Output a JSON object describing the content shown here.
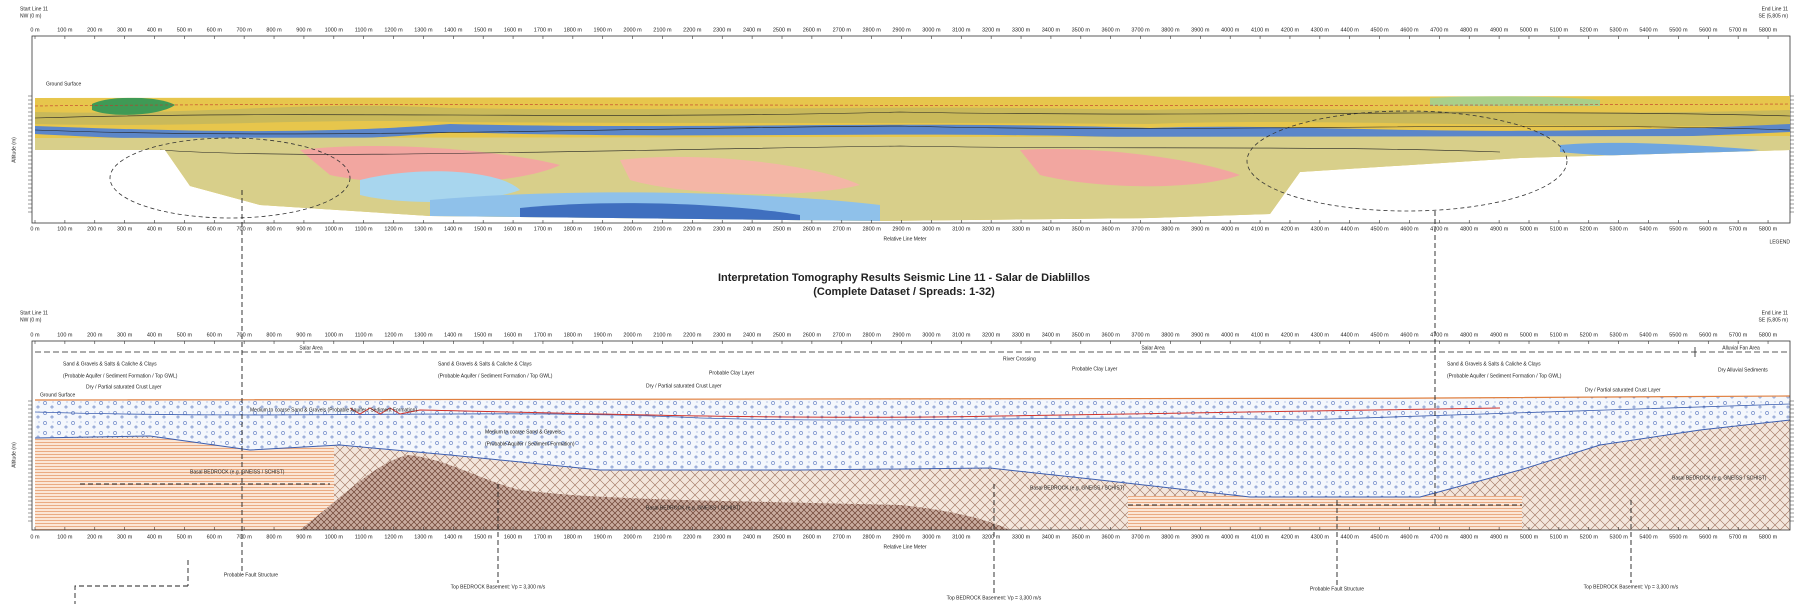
{
  "title": {
    "line1": "Interpretation Tomography Results Seismic Line 11 - Salar de Diablillos",
    "line2": "(Complete Dataset / Spreads: 1-32)"
  },
  "distance_ticks": [
    "0 m",
    "100 m",
    "200 m",
    "300 m",
    "400 m",
    "500 m",
    "600 m",
    "700 m",
    "800 m",
    "900 m",
    "1000 m",
    "1100 m",
    "1200 m",
    "1300 m",
    "1400 m",
    "1500 m",
    "1600 m",
    "1700 m",
    "1800 m",
    "1900 m",
    "2000 m",
    "2100 m",
    "2200 m",
    "2300 m",
    "2400 m",
    "2500 m",
    "2600 m",
    "2700 m",
    "2800 m",
    "2900 m",
    "3000 m",
    "3100 m",
    "3200 m",
    "3300 m",
    "3400 m",
    "3500 m",
    "3600 m",
    "3700 m",
    "3800 m",
    "3900 m",
    "4000 m",
    "4100 m",
    "4200 m",
    "4300 m",
    "4400 m",
    "4500 m",
    "4600 m",
    "4700 m",
    "4800 m",
    "4900 m",
    "5000 m",
    "5100 m",
    "5200 m",
    "5300 m",
    "5400 m",
    "5500 m",
    "5600 m",
    "5700 m",
    "5800 m"
  ],
  "top_panel": {
    "start_label": "Start Line 11",
    "start_sub": "NW (0 m)",
    "end_label": "End Line 11",
    "end_sub": "SE (5,805 m)",
    "ground_surface": "Ground Surface",
    "y_axis_title": "Altitude (m)",
    "x_axis_title": "Relative Line Meter",
    "legend": "LEGEND"
  },
  "bottom_panel": {
    "start_label": "Start Line 11",
    "start_sub": "NW (0 m)",
    "end_label": "End Line 11",
    "end_sub": "SE (5,805 m)",
    "ground_surface": "Ground Surface",
    "y_axis_title": "Altitude (m)",
    "x_axis_title": "Relative Line Meter",
    "zones": [
      "Salar Area",
      "Salar Area",
      "Alluvial Fan Area"
    ],
    "annotations": [
      "Sand & Gravels & Salts & Caliche & Clays",
      "(Probable Aquifer / Sediment Formation / Top GWL)",
      "Dry / Partial saturated Crust Layer",
      "Sand & Gravels & Salts & Caliche & Clays",
      "(Probable Aquifer / Sediment Formation / Top GWL)",
      "Dry / Partial saturated Crust Layer",
      "Probable Clay Layer",
      "River Crossing",
      "Probable Clay Layer",
      "Sand & Gravels & Salts & Caliche & Clays",
      "(Probable Aquifer / Sediment Formation / Top GWL)",
      "Dry / Partial saturated Crust Layer",
      "Dry Alluvial Sediments",
      "Medium to coarse Sand & Gravels (Probable Aquifer / Sediment Formation)",
      "Medium to coarse Sand & Gravels",
      "(Probable Aquifer / Sediment Formation)",
      "Basal BEDROCK (e.g. GNEISS / SCHIST)",
      "Basal BEDROCK (e.g. GNEISS / SCHIST)",
      "Basal BEDROCK (e.g. GNEISS / SCHIST)",
      "Basal BEDROCK (e.g. GNEISS / SCHIST)"
    ],
    "notes": [
      "Probable Fault Structure",
      "Top BEDROCK Basement: Vp = 3,300 m/s",
      "Top BEDROCK Basement: Vp = 3,300 m/s",
      "Probable Fault Structure",
      "Top BEDROCK Basement: Vp = 3,300 m/s"
    ]
  }
}
